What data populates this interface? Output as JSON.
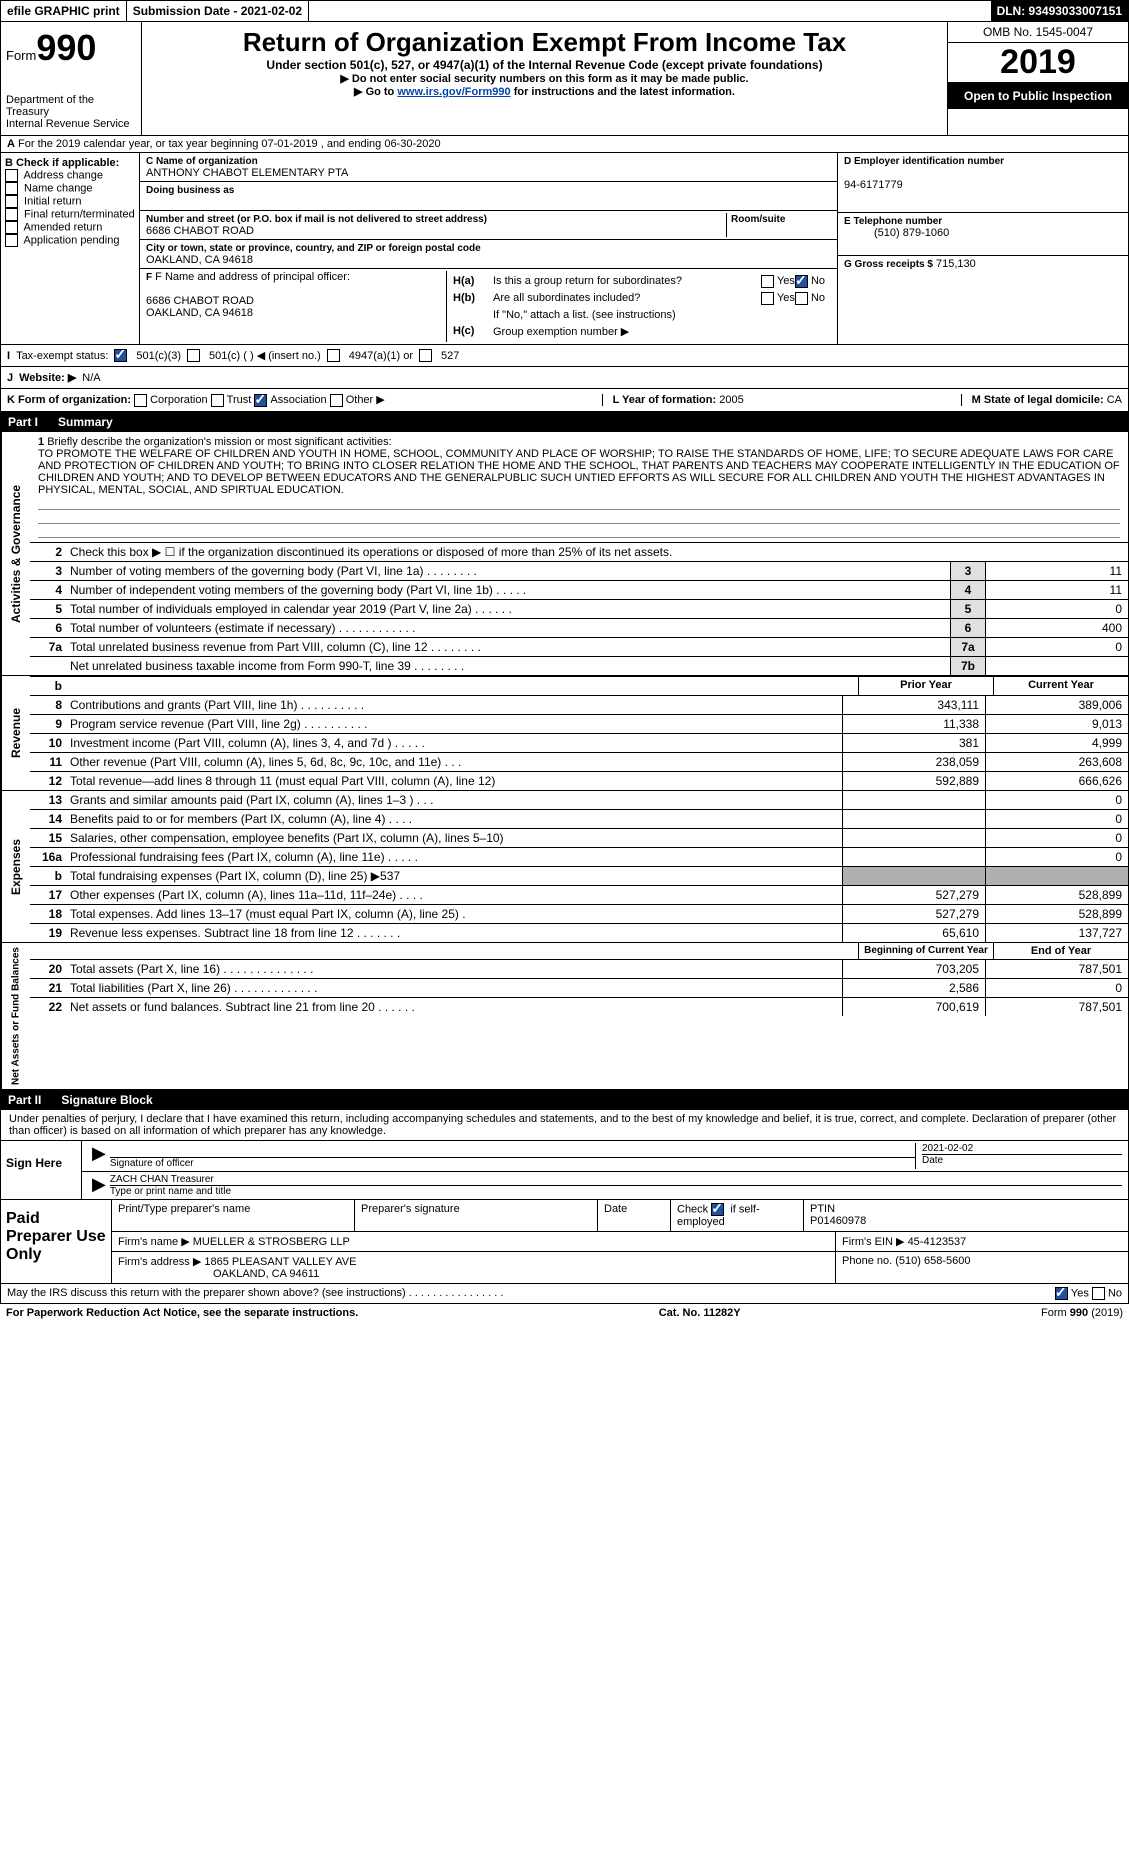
{
  "topbar": {
    "efile": "efile GRAPHIC print",
    "submission": "Submission Date - 2021-02-02",
    "dln": "DLN: 93493033007151"
  },
  "header": {
    "form_label": "Form",
    "form_num": "990",
    "dept": "Department of the Treasury\nInternal Revenue Service",
    "title": "Return of Organization Exempt From Income Tax",
    "subtitle": "Under section 501(c), 527, or 4947(a)(1) of the Internal Revenue Code (except private foundations)",
    "instr1": "▶ Do not enter social security numbers on this form as it may be made public.",
    "instr2_pre": "▶ Go to ",
    "instr2_link": "www.irs.gov/Form990",
    "instr2_post": " for instructions and the latest information.",
    "omb": "OMB No. 1545-0047",
    "year": "2019",
    "inspect": "Open to Public Inspection"
  },
  "a": "For the 2019 calendar year, or tax year beginning 07-01-2019   , and ending 06-30-2020",
  "b": {
    "label": "B Check if applicable:",
    "items": [
      "Address change",
      "Name change",
      "Initial return",
      "Final return/terminated",
      "Amended return",
      "Application pending"
    ]
  },
  "c": {
    "label": "C Name of organization",
    "name": "ANTHONY CHABOT ELEMENTARY PTA",
    "dba_label": "Doing business as",
    "dba": "",
    "addr_label": "Number and street (or P.O. box if mail is not delivered to street address)",
    "addr": "6686 CHABOT ROAD",
    "room_label": "Room/suite",
    "city_label": "City or town, state or province, country, and ZIP or foreign postal code",
    "city": "OAKLAND, CA  94618"
  },
  "d": {
    "label": "D Employer identification number",
    "val": "94-6171779"
  },
  "e": {
    "label": "E Telephone number",
    "val": "(510) 879-1060"
  },
  "g": {
    "label": "G Gross receipts $",
    "val": "715,130"
  },
  "f": {
    "label": "F Name and address of principal officer:",
    "addr1": "6686 CHABOT ROAD",
    "addr2": "OAKLAND, CA  94618"
  },
  "h": {
    "ha": "Is this a group return for subordinates?",
    "hb": "Are all subordinates included?",
    "hb_note": "If \"No,\" attach a list. (see instructions)",
    "hc": "Group exemption number ▶"
  },
  "i": {
    "label": "Tax-exempt status:",
    "opts": [
      "501(c)(3)",
      "501(c) (  ) ◀ (insert no.)",
      "4947(a)(1) or",
      "527"
    ]
  },
  "j": {
    "label": "Website: ▶",
    "val": "N/A"
  },
  "k": {
    "label": "K Form of organization:",
    "opts": [
      "Corporation",
      "Trust",
      "Association",
      "Other ▶"
    ]
  },
  "l": {
    "label": "L Year of formation:",
    "val": "2005"
  },
  "m": {
    "label": "M State of legal domicile:",
    "val": "CA"
  },
  "part1": {
    "num": "Part I",
    "title": "Summary"
  },
  "mission": {
    "num": "1",
    "label": "Briefly describe the organization's mission or most significant activities:",
    "text": "TO PROMOTE THE WELFARE OF CHILDREN AND YOUTH IN HOME, SCHOOL, COMMUNITY AND PLACE OF WORSHIP; TO RAISE THE STANDARDS OF HOME, LIFE; TO SECURE ADEQUATE LAWS FOR CARE AND PROTECTION OF CHILDREN AND YOUTH; TO BRING INTO CLOSER RELATION THE HOME AND THE SCHOOL, THAT PARENTS AND TEACHERS MAY COOPERATE INTELLIGENTLY IN THE EDUCATION OF CHILDREN AND YOUTH; AND TO DEVELOP BETWEEN EDUCATORS AND THE GENERALPUBLIC SUCH UNTIED EFFORTS AS WILL SECURE FOR ALL CHILDREN AND YOUTH THE HIGHEST ADVANTAGES IN PHYSICAL, MENTAL, SOCIAL, AND SPIRTUAL EDUCATION."
  },
  "line2": "Check this box ▶ ☐ if the organization discontinued its operations or disposed of more than 25% of its net assets.",
  "sections": {
    "ag": {
      "label": "Activities & Governance",
      "rows": [
        {
          "n": "3",
          "t": "Number of voting members of the governing body (Part VI, line 1a)  .   .   .   .   .   .   .   .",
          "b": "3",
          "v": "11"
        },
        {
          "n": "4",
          "t": "Number of independent voting members of the governing body (Part VI, line 1b)  .   .   .   .   .",
          "b": "4",
          "v": "11"
        },
        {
          "n": "5",
          "t": "Total number of individuals employed in calendar year 2019 (Part V, line 2a)  .   .   .   .   .   .",
          "b": "5",
          "v": "0"
        },
        {
          "n": "6",
          "t": "Total number of volunteers (estimate if necessary)   .   .   .   .   .   .   .   .   .   .   .   .",
          "b": "6",
          "v": "400"
        },
        {
          "n": "7a",
          "t": "Total unrelated business revenue from Part VIII, column (C), line 12  .   .   .   .   .   .   .   .",
          "b": "7a",
          "v": "0"
        },
        {
          "n": "",
          "t": "Net unrelated business taxable income from Form 990-T, line 39   .   .   .   .   .   .   .   .",
          "b": "7b",
          "v": ""
        }
      ]
    },
    "rev": {
      "label": "Revenue",
      "header": {
        "prior": "Prior Year",
        "curr": "Current Year"
      },
      "rows": [
        {
          "n": "8",
          "t": "Contributions and grants (Part VIII, line 1h)  .   .   .   .   .   .   .   .   .   .",
          "p": "343,111",
          "c": "389,006"
        },
        {
          "n": "9",
          "t": "Program service revenue (Part VIII, line 2g)  .   .   .   .   .   .   .   .   .   .",
          "p": "11,338",
          "c": "9,013"
        },
        {
          "n": "10",
          "t": "Investment income (Part VIII, column (A), lines 3, 4, and 7d )  .   .   .   .   .",
          "p": "381",
          "c": "4,999"
        },
        {
          "n": "11",
          "t": "Other revenue (Part VIII, column (A), lines 5, 6d, 8c, 9c, 10c, and 11e)  .   .   .",
          "p": "238,059",
          "c": "263,608"
        },
        {
          "n": "12",
          "t": "Total revenue—add lines 8 through 11 (must equal Part VIII, column (A), line 12)",
          "p": "592,889",
          "c": "666,626"
        }
      ]
    },
    "exp": {
      "label": "Expenses",
      "rows": [
        {
          "n": "13",
          "t": "Grants and similar amounts paid (Part IX, column (A), lines 1–3 )  .   .   .",
          "p": "",
          "c": "0"
        },
        {
          "n": "14",
          "t": "Benefits paid to or for members (Part IX, column (A), line 4)  .   .   .   .",
          "p": "",
          "c": "0"
        },
        {
          "n": "15",
          "t": "Salaries, other compensation, employee benefits (Part IX, column (A), lines 5–10)",
          "p": "",
          "c": "0"
        },
        {
          "n": "16a",
          "t": "Professional fundraising fees (Part IX, column (A), line 11e)  .   .   .   .   .",
          "p": "",
          "c": "0"
        },
        {
          "n": "b",
          "t": "Total fundraising expenses (Part IX, column (D), line 25) ▶537",
          "p": "grey",
          "c": "grey"
        },
        {
          "n": "17",
          "t": "Other expenses (Part IX, column (A), lines 11a–11d, 11f–24e)  .   .   .   .",
          "p": "527,279",
          "c": "528,899"
        },
        {
          "n": "18",
          "t": "Total expenses. Add lines 13–17 (must equal Part IX, column (A), line 25)  .",
          "p": "527,279",
          "c": "528,899"
        },
        {
          "n": "19",
          "t": "Revenue less expenses. Subtract line 18 from line 12  .   .   .   .   .   .   .",
          "p": "65,610",
          "c": "137,727"
        }
      ]
    },
    "na": {
      "label": "Net Assets or Fund Balances",
      "header": {
        "beg": "Beginning of Current Year",
        "end": "End of Year"
      },
      "rows": [
        {
          "n": "20",
          "t": "Total assets (Part X, line 16)  .   .   .   .   .   .   .   .   .   .   .   .   .   .",
          "p": "703,205",
          "c": "787,501"
        },
        {
          "n": "21",
          "t": "Total liabilities (Part X, line 26)  .   .   .   .   .   .   .   .   .   .   .   .   .",
          "p": "2,586",
          "c": "0"
        },
        {
          "n": "22",
          "t": "Net assets or fund balances. Subtract line 21 from line 20   .   .   .   .   .   .",
          "p": "700,619",
          "c": "787,501"
        }
      ]
    }
  },
  "part2": {
    "num": "Part II",
    "title": "Signature Block"
  },
  "sig": {
    "perjury": "Under penalties of perjury, I declare that I have examined this return, including accompanying schedules and statements, and to the best of my knowledge and belief, it is true, correct, and complete. Declaration of preparer (other than officer) is based on all information of which preparer has any knowledge.",
    "here": "Sign Here",
    "officer_sig": "Signature of officer",
    "date": "2021-02-02",
    "date_label": "Date",
    "name": "ZACH CHAN  Treasurer",
    "name_label": "Type or print name and title"
  },
  "paid": {
    "label": "Paid Preparer Use Only",
    "h1": "Print/Type preparer's name",
    "h2": "Preparer's signature",
    "h3": "Date",
    "check_label": "Check",
    "self": "if self-employed",
    "ptin_label": "PTIN",
    "ptin": "P01460978",
    "firm_label": "Firm's name   ▶",
    "firm": "MUELLER & STROSBERG LLP",
    "ein_label": "Firm's EIN ▶",
    "ein": "45-4123537",
    "addr_label": "Firm's address ▶",
    "addr": "1865 PLEASANT VALLEY AVE",
    "addr2": "OAKLAND, CA  94611",
    "phone_label": "Phone no.",
    "phone": "(510) 658-5600"
  },
  "bottom": "May the IRS discuss this return with the preparer shown above? (see instructions)  .   .   .   .   .   .   .   .   .   .   .   .   .   .   .   .",
  "footer": {
    "l": "For Paperwork Reduction Act Notice, see the separate instructions.",
    "c": "Cat. No. 11282Y",
    "r": "Form 990 (2019)"
  },
  "yes": "Yes",
  "no": "No"
}
